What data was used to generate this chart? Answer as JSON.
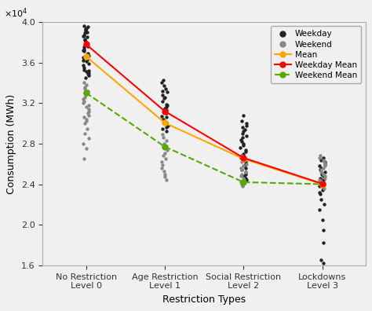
{
  "x_labels": [
    "No Restriction\nLevel 0",
    "Age Restriction\nLevel 1",
    "Social Restriction\nLevel 2",
    "Lockdowns\nLevel 3"
  ],
  "x_positions": [
    0,
    1,
    2,
    3
  ],
  "weekday_mean": [
    37800,
    31200,
    26600,
    24050
  ],
  "weekend_mean": [
    33000,
    27700,
    24200,
    24000
  ],
  "overall_mean": [
    36600,
    30050,
    26500,
    24000
  ],
  "weekday_dots_0": [
    34500,
    34700,
    34900,
    35100,
    35300,
    35500,
    35700,
    35900,
    36100,
    36300,
    36500,
    36700,
    36900,
    37100,
    37300,
    37500,
    37700,
    37900,
    38100,
    38300,
    38500,
    38700,
    38900,
    39100,
    39300,
    39500,
    39600,
    39400,
    38000,
    37200,
    36800,
    36400,
    36200,
    35200,
    35000,
    37600,
    38200,
    38600,
    39000,
    39200
  ],
  "weekday_dots_1": [
    29200,
    29500,
    29800,
    30100,
    30400,
    30700,
    31000,
    31300,
    31600,
    31900,
    32200,
    32500,
    32800,
    33100,
    33400,
    33700,
    34000,
    34300,
    30200,
    30600,
    31100,
    31800,
    32600,
    33200,
    29600,
    30000,
    31500
  ],
  "weekday_dots_2": [
    24000,
    24200,
    24400,
    24600,
    24800,
    25000,
    25200,
    25400,
    25600,
    25800,
    26000,
    26200,
    26400,
    26600,
    26800,
    27000,
    27200,
    27400,
    27600,
    27800,
    28000,
    28200,
    28400,
    28600,
    28800,
    29000,
    29200,
    29400,
    29600,
    29800,
    30000,
    30200,
    30800
  ],
  "weekday_dots_3": [
    16200,
    16500,
    18200,
    19500,
    20500,
    21500,
    22000,
    22500,
    23000,
    23200,
    23400,
    23600,
    23800,
    24000,
    24200,
    24400,
    24600,
    24800,
    25000,
    25200,
    25400,
    25600,
    25800,
    26000,
    26200,
    26400,
    26600
  ],
  "weekend_dots_0": [
    26500,
    27500,
    28000,
    28500,
    29000,
    29500,
    30000,
    30200,
    30400,
    30600,
    30800,
    31000,
    31200,
    31400,
    31600,
    31800,
    32000,
    32200,
    32400,
    32600,
    32800,
    33000,
    33200,
    33400,
    33600,
    33800,
    34000
  ],
  "weekend_dots_1": [
    24400,
    24700,
    25000,
    25300,
    25600,
    25900,
    26200,
    26500,
    26800,
    27100,
    27400,
    27700,
    28000,
    28300,
    28600,
    28900
  ],
  "weekend_dots_2": [
    23800,
    24000,
    24200,
    24400,
    24600,
    24800,
    25000,
    25200,
    25400,
    25600,
    25800,
    26000,
    26200,
    26400,
    26600,
    26800
  ],
  "weekend_dots_3": [
    23600,
    23800,
    24000,
    24200,
    24400,
    24600,
    24800,
    25000,
    25200,
    25400,
    25600,
    25800,
    26000,
    26200,
    26400,
    26600,
    26800
  ],
  "weekday_color": "#222222",
  "weekend_color": "#888888",
  "mean_line_color": "#FFA500",
  "weekday_mean_color": "#FF0000",
  "weekend_mean_color": "#55AA00",
  "ylabel": "Consumption (MWh)",
  "xlabel": "Restriction Types",
  "ylim_low": 16000,
  "ylim_high": 40000,
  "background_color": "#f0f0f0"
}
